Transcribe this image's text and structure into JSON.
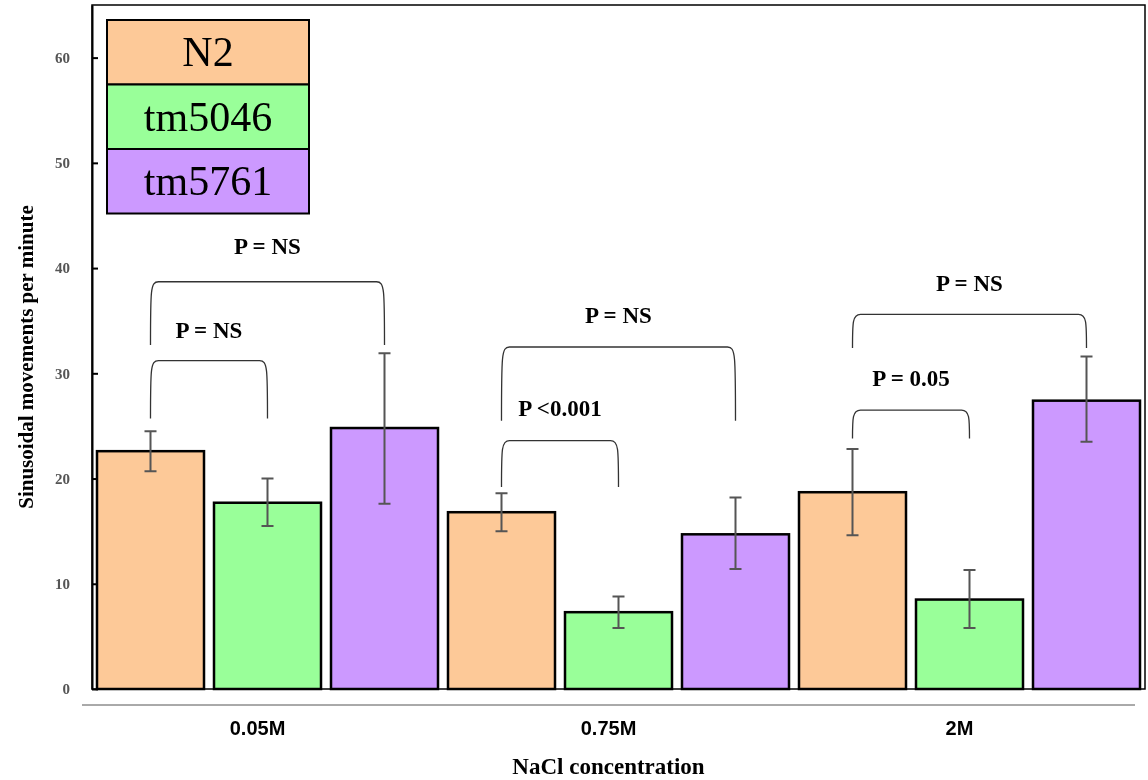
{
  "chart_data": {
    "type": "bar",
    "xlabel": "NaCl concentration",
    "ylabel": "Sinusoidal movements per minute",
    "categories": [
      "0.05M",
      "0.75M",
      "2M"
    ],
    "series": [
      {
        "name": "N2",
        "color": "#fdc998",
        "values": [
          22.6,
          16.8,
          18.7
        ],
        "errors": [
          [
            20.7,
            24.5
          ],
          [
            15.0,
            18.6
          ],
          [
            14.6,
            22.8
          ]
        ]
      },
      {
        "name": "tm5046",
        "color": "#99ff99",
        "values": [
          17.7,
          7.3,
          8.5
        ],
        "errors": [
          [
            15.5,
            20.0
          ],
          [
            5.8,
            8.8
          ],
          [
            5.8,
            11.3
          ]
        ]
      },
      {
        "name": "tm5761",
        "color": "#cc99ff",
        "values": [
          24.8,
          14.7,
          27.4
        ],
        "errors": [
          [
            17.6,
            31.9
          ],
          [
            11.4,
            18.2
          ],
          [
            23.5,
            31.6
          ]
        ]
      }
    ],
    "ylim": [
      0,
      65
    ],
    "yticks": [
      0,
      10,
      20,
      30,
      40,
      50,
      60
    ],
    "grid": false,
    "legend": "top left",
    "annotations": [
      "P = NS",
      "P = NS",
      "P = NS",
      "P <0.001",
      "P = NS",
      "P = 0.05"
    ]
  }
}
